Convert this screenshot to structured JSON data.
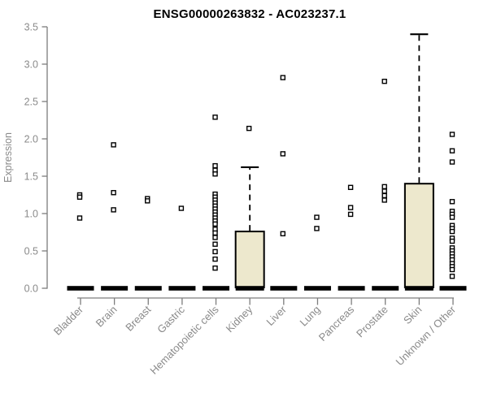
{
  "chart_data": {
    "type": "box",
    "title": "ENSG00000263832 - AC023237.1",
    "ylabel": "Expression",
    "xlabel": "",
    "ylim": [
      0,
      3.5
    ],
    "yticks": [
      0,
      0.5,
      1,
      1.5,
      2,
      2.5,
      3,
      3.5
    ],
    "grid": false,
    "legend": "none",
    "point_marker": "open-square",
    "colors": {
      "box_fill": "#EDE8CD",
      "box_border": "#000000",
      "median": "#000000",
      "point": "#000000",
      "axis": "#7d7d7d",
      "tick_text": "#8a8a8a",
      "title_text": "#000000",
      "background": "#ffffff"
    },
    "categories": [
      "Bladder",
      "Brain",
      "Breast",
      "Gastric",
      "Hematopoietic cells",
      "Kidney",
      "Liver",
      "Lung",
      "Pancreas",
      "Prostate",
      "Skin",
      "Unknown / Other"
    ],
    "series": [
      {
        "category": "Bladder",
        "box": {
          "q1": 0,
          "median": 0,
          "q3": 0,
          "whisker_low": 0,
          "whisker_high": 0
        },
        "points": [
          1.25,
          1.22,
          0.94
        ]
      },
      {
        "category": "Brain",
        "box": {
          "q1": 0,
          "median": 0,
          "q3": 0,
          "whisker_low": 0,
          "whisker_high": 0
        },
        "points": [
          1.92,
          1.28,
          1.05
        ]
      },
      {
        "category": "Breast",
        "box": {
          "q1": 0,
          "median": 0,
          "q3": 0,
          "whisker_low": 0,
          "whisker_high": 0
        },
        "points": [
          1.2,
          1.17
        ]
      },
      {
        "category": "Gastric",
        "box": {
          "q1": 0,
          "median": 0,
          "q3": 0,
          "whisker_low": 0,
          "whisker_high": 0
        },
        "points": [
          1.07
        ]
      },
      {
        "category": "Hematopoietic cells",
        "box": {
          "q1": 0,
          "median": 0,
          "q3": 0,
          "whisker_low": 0,
          "whisker_high": 0
        },
        "points": [
          2.29,
          1.64,
          1.58,
          1.53,
          1.26,
          1.22,
          1.18,
          1.14,
          1.1,
          1.06,
          1.02,
          0.98,
          0.94,
          0.9,
          0.86,
          0.79,
          0.74,
          0.68,
          0.59,
          0.49,
          0.39,
          0.27
        ]
      },
      {
        "category": "Kidney",
        "box": {
          "q1": 0,
          "median": 0,
          "q3": 0.76,
          "whisker_low": 0,
          "whisker_high": 1.62
        },
        "points": [
          2.14
        ]
      },
      {
        "category": "Liver",
        "box": {
          "q1": 0,
          "median": 0,
          "q3": 0,
          "whisker_low": 0,
          "whisker_high": 0
        },
        "points": [
          2.82,
          1.8,
          0.73
        ]
      },
      {
        "category": "Lung",
        "box": {
          "q1": 0,
          "median": 0,
          "q3": 0,
          "whisker_low": 0,
          "whisker_high": 0
        },
        "points": [
          0.95,
          0.8
        ]
      },
      {
        "category": "Pancreas",
        "box": {
          "q1": 0,
          "median": 0,
          "q3": 0,
          "whisker_low": 0,
          "whisker_high": 0
        },
        "points": [
          1.35,
          1.08,
          0.99
        ]
      },
      {
        "category": "Prostate",
        "box": {
          "q1": 0,
          "median": 0,
          "q3": 0,
          "whisker_low": 0,
          "whisker_high": 0
        },
        "points": [
          2.77,
          1.36,
          1.3,
          1.24,
          1.18
        ]
      },
      {
        "category": "Skin",
        "box": {
          "q1": 0,
          "median": 0,
          "q3": 1.4,
          "whisker_low": 0,
          "whisker_high": 3.4
        },
        "points": []
      },
      {
        "category": "Unknown / Other",
        "box": {
          "q1": 0,
          "median": 0,
          "q3": 0,
          "whisker_low": 0,
          "whisker_high": 0
        },
        "points": [
          2.06,
          1.84,
          1.69,
          1.16,
          1.03,
          0.99,
          0.95,
          0.84,
          0.8,
          0.76,
          0.67,
          0.63,
          0.54,
          0.5,
          0.46,
          0.42,
          0.38,
          0.33,
          0.29,
          0.25,
          0.16
        ]
      }
    ]
  }
}
